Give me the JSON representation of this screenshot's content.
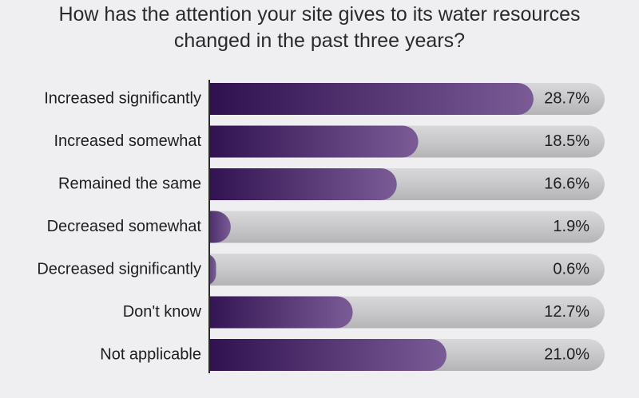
{
  "chart_data": {
    "type": "bar",
    "orientation": "horizontal",
    "title": "How has the attention your site gives to its water resources changed in the past three years?",
    "categories": [
      "Increased significantly",
      "Increased somewhat",
      "Remained the same",
      "Decreased somewhat",
      "Decreased significantly",
      "Don't know",
      "Not applicable"
    ],
    "values": [
      28.7,
      18.5,
      16.6,
      1.9,
      0.6,
      12.7,
      21.0
    ],
    "value_labels": [
      "28.7%",
      "18.5%",
      "16.6%",
      "1.9%",
      "0.6%",
      "12.7%",
      "21.0%"
    ],
    "color": "#3a1760",
    "xlim": [
      0,
      35
    ]
  }
}
